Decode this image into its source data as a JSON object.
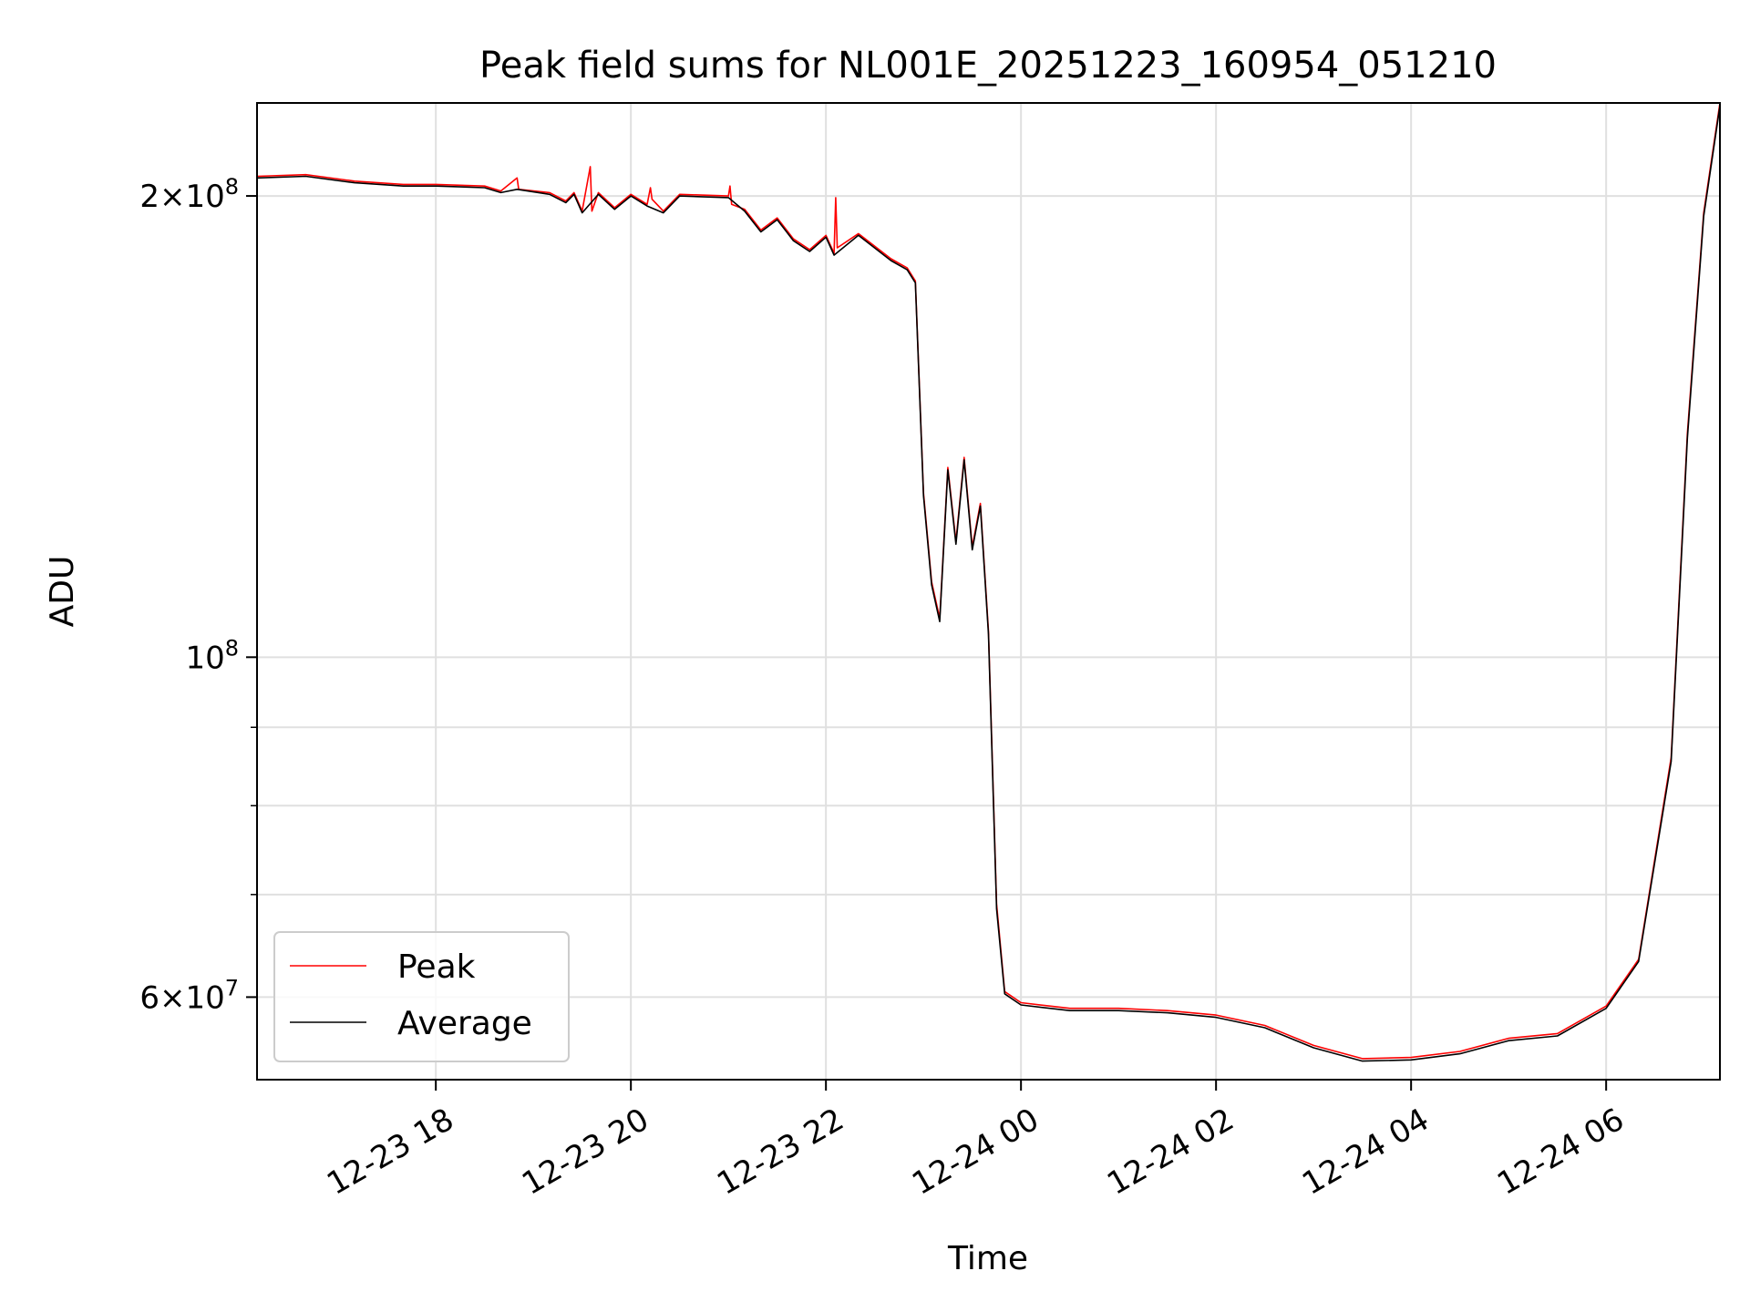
{
  "chart_data": {
    "type": "line",
    "title": "Peak field sums for NL001E_20251223_160954_051210",
    "xlabel": "Time",
    "ylabel": "ADU",
    "y_scale": "log",
    "ylim": [
      53000000,
      230000000
    ],
    "xlim": [
      "2025-12-23 16:10",
      "2025-12-24 07:10"
    ],
    "grid": true,
    "legend": "lower-left",
    "x_ticks": [
      {
        "t": "2025-12-23 18:00",
        "label": "12-23 18"
      },
      {
        "t": "2025-12-23 20:00",
        "label": "12-23 20"
      },
      {
        "t": "2025-12-23 22:00",
        "label": "12-23 22"
      },
      {
        "t": "2025-12-24 00:00",
        "label": "12-24 00"
      },
      {
        "t": "2025-12-24 02:00",
        "label": "12-24 02"
      },
      {
        "t": "2025-12-24 04:00",
        "label": "12-24 04"
      },
      {
        "t": "2025-12-24 06:00",
        "label": "12-24 06"
      }
    ],
    "y_ticks_major": [
      {
        "v": 60000000,
        "base": "6",
        "sup": "7",
        "times": true
      },
      {
        "v": 100000000,
        "base": "",
        "sup": "8",
        "times": false
      },
      {
        "v": 200000000,
        "base": "2",
        "sup": "8",
        "times": true
      }
    ],
    "y_ticks_minor": [
      70000000,
      80000000,
      90000000
    ],
    "series": [
      {
        "name": "Peak",
        "color": "#ff0000",
        "points": [
          [
            "2025-12-23 16:10",
            206000000
          ],
          [
            "2025-12-23 16:40",
            206500000
          ],
          [
            "2025-12-23 17:10",
            204500000
          ],
          [
            "2025-12-23 17:40",
            203500000
          ],
          [
            "2025-12-23 18:00",
            203500000
          ],
          [
            "2025-12-23 18:30",
            203000000
          ],
          [
            "2025-12-23 18:40",
            201500000
          ],
          [
            "2025-12-23 18:50",
            205500000
          ],
          [
            "2025-12-23 18:51",
            202000000
          ],
          [
            "2025-12-23 19:10",
            201000000
          ],
          [
            "2025-12-23 19:20",
            198500000
          ],
          [
            "2025-12-23 19:25",
            201000000
          ],
          [
            "2025-12-23 19:30",
            195500000
          ],
          [
            "2025-12-23 19:35",
            209000000
          ],
          [
            "2025-12-23 19:36",
            195500000
          ],
          [
            "2025-12-23 19:40",
            201000000
          ],
          [
            "2025-12-23 19:50",
            196500000
          ],
          [
            "2025-12-23 20:00",
            200500000
          ],
          [
            "2025-12-23 20:10",
            197500000
          ],
          [
            "2025-12-23 20:12",
            202500000
          ],
          [
            "2025-12-23 20:13",
            199000000
          ],
          [
            "2025-12-23 20:20",
            195500000
          ],
          [
            "2025-12-23 20:30",
            200500000
          ],
          [
            "2025-12-23 21:00",
            200000000
          ],
          [
            "2025-12-23 21:01",
            203000000
          ],
          [
            "2025-12-23 21:02",
            197500000
          ],
          [
            "2025-12-23 21:10",
            196000000
          ],
          [
            "2025-12-23 21:20",
            190000000
          ],
          [
            "2025-12-23 21:30",
            193500000
          ],
          [
            "2025-12-23 21:40",
            187500000
          ],
          [
            "2025-12-23 21:50",
            184500000
          ],
          [
            "2025-12-23 22:00",
            188500000
          ],
          [
            "2025-12-23 22:05",
            183500000
          ],
          [
            "2025-12-23 22:06",
            199500000
          ],
          [
            "2025-12-23 22:07",
            185000000
          ],
          [
            "2025-12-23 22:20",
            189000000
          ],
          [
            "2025-12-23 22:40",
            182000000
          ],
          [
            "2025-12-23 22:50",
            179500000
          ],
          [
            "2025-12-23 22:55",
            176000000
          ],
          [
            "2025-12-23 23:00",
            128000000
          ],
          [
            "2025-12-23 23:05",
            112000000
          ],
          [
            "2025-12-23 23:10",
            106000000
          ],
          [
            "2025-12-23 23:15",
            133000000
          ],
          [
            "2025-12-23 23:20",
            119000000
          ],
          [
            "2025-12-23 23:25",
            135000000
          ],
          [
            "2025-12-23 23:30",
            118000000
          ],
          [
            "2025-12-23 23:35",
            126000000
          ],
          [
            "2025-12-23 23:40",
            104000000
          ],
          [
            "2025-12-23 23:45",
            69000000
          ],
          [
            "2025-12-23 23:50",
            60500000
          ],
          [
            "2025-12-24 00:00",
            59500000
          ],
          [
            "2025-12-24 00:30",
            59000000
          ],
          [
            "2025-12-24 01:00",
            59000000
          ],
          [
            "2025-12-24 01:30",
            58800000
          ],
          [
            "2025-12-24 02:00",
            58400000
          ],
          [
            "2025-12-24 02:30",
            57500000
          ],
          [
            "2025-12-24 03:00",
            55800000
          ],
          [
            "2025-12-24 03:30",
            54700000
          ],
          [
            "2025-12-24 04:00",
            54800000
          ],
          [
            "2025-12-24 04:30",
            55300000
          ],
          [
            "2025-12-24 05:00",
            56400000
          ],
          [
            "2025-12-24 05:30",
            56800000
          ],
          [
            "2025-12-24 06:00",
            59200000
          ],
          [
            "2025-12-24 06:20",
            63500000
          ],
          [
            "2025-12-24 06:40",
            86000000
          ],
          [
            "2025-12-24 06:50",
            140000000
          ],
          [
            "2025-12-24 07:00",
            195000000
          ],
          [
            "2025-12-24 07:10",
            230000000
          ]
        ]
      },
      {
        "name": "Average",
        "color": "#000000",
        "points": [
          [
            "2025-12-23 16:10",
            205500000
          ],
          [
            "2025-12-23 16:40",
            206000000
          ],
          [
            "2025-12-23 17:10",
            204000000
          ],
          [
            "2025-12-23 17:40",
            203000000
          ],
          [
            "2025-12-23 18:00",
            203000000
          ],
          [
            "2025-12-23 18:30",
            202500000
          ],
          [
            "2025-12-23 18:40",
            201000000
          ],
          [
            "2025-12-23 18:50",
            202000000
          ],
          [
            "2025-12-23 19:10",
            200500000
          ],
          [
            "2025-12-23 19:20",
            198000000
          ],
          [
            "2025-12-23 19:25",
            200500000
          ],
          [
            "2025-12-23 19:30",
            195000000
          ],
          [
            "2025-12-23 19:40",
            200500000
          ],
          [
            "2025-12-23 19:50",
            196000000
          ],
          [
            "2025-12-23 20:00",
            200000000
          ],
          [
            "2025-12-23 20:10",
            197000000
          ],
          [
            "2025-12-23 20:20",
            195000000
          ],
          [
            "2025-12-23 20:30",
            200000000
          ],
          [
            "2025-12-23 21:00",
            199500000
          ],
          [
            "2025-12-23 21:10",
            195500000
          ],
          [
            "2025-12-23 21:20",
            189500000
          ],
          [
            "2025-12-23 21:30",
            193000000
          ],
          [
            "2025-12-23 21:40",
            187000000
          ],
          [
            "2025-12-23 21:50",
            184000000
          ],
          [
            "2025-12-23 22:00",
            188000000
          ],
          [
            "2025-12-23 22:05",
            183000000
          ],
          [
            "2025-12-23 22:20",
            188500000
          ],
          [
            "2025-12-23 22:40",
            181500000
          ],
          [
            "2025-12-23 22:50",
            179000000
          ],
          [
            "2025-12-23 22:55",
            175500000
          ],
          [
            "2025-12-23 23:00",
            127500000
          ],
          [
            "2025-12-23 23:05",
            111500000
          ],
          [
            "2025-12-23 23:10",
            105500000
          ],
          [
            "2025-12-23 23:15",
            132500000
          ],
          [
            "2025-12-23 23:20",
            118500000
          ],
          [
            "2025-12-23 23:25",
            134500000
          ],
          [
            "2025-12-23 23:30",
            117500000
          ],
          [
            "2025-12-23 23:35",
            125500000
          ],
          [
            "2025-12-23 23:40",
            103500000
          ],
          [
            "2025-12-23 23:45",
            68500000
          ],
          [
            "2025-12-23 23:50",
            60300000
          ],
          [
            "2025-12-24 00:00",
            59300000
          ],
          [
            "2025-12-24 00:30",
            58800000
          ],
          [
            "2025-12-24 01:00",
            58800000
          ],
          [
            "2025-12-24 01:30",
            58600000
          ],
          [
            "2025-12-24 02:00",
            58200000
          ],
          [
            "2025-12-24 02:30",
            57300000
          ],
          [
            "2025-12-24 03:00",
            55600000
          ],
          [
            "2025-12-24 03:30",
            54500000
          ],
          [
            "2025-12-24 04:00",
            54600000
          ],
          [
            "2025-12-24 04:30",
            55100000
          ],
          [
            "2025-12-24 05:00",
            56200000
          ],
          [
            "2025-12-24 05:30",
            56600000
          ],
          [
            "2025-12-24 06:00",
            59000000
          ],
          [
            "2025-12-24 06:20",
            63300000
          ],
          [
            "2025-12-24 06:40",
            85500000
          ],
          [
            "2025-12-24 06:50",
            139000000
          ],
          [
            "2025-12-24 07:00",
            194000000
          ],
          [
            "2025-12-24 07:10",
            229000000
          ]
        ]
      }
    ]
  }
}
